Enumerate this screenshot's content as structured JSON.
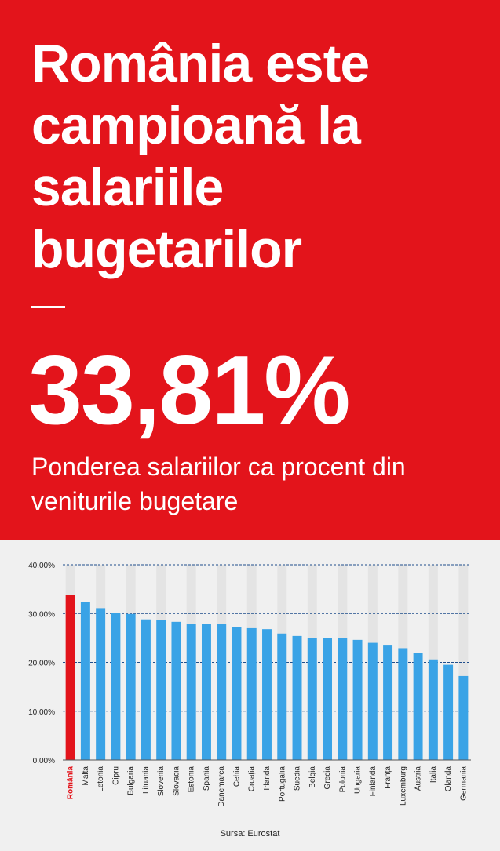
{
  "headline": "România este campioană la salariile bugetarilor",
  "big_value": "33,81%",
  "subtitle": "Ponderea salariilor ca procent din veniturile bugetare",
  "source": "Sursa: Eurostat",
  "colors": {
    "hero_background": "#e3141b",
    "highlight_bar": "#e3141b",
    "bar": "#3aa3e6",
    "stripe": "#e4e4e4",
    "gridline": "#1f4e8c"
  },
  "chart_data": {
    "type": "bar",
    "categories": [
      "România",
      "Malta",
      "Letonia",
      "Cipru",
      "Bulgaria",
      "Lituania",
      "Slovenia",
      "Slovacia",
      "Estonia",
      "Spania",
      "Danemarca",
      "Cehia",
      "Croația",
      "Irlanda",
      "Portugalia",
      "Suedia",
      "Belgia",
      "Grecia",
      "Polonia",
      "Ungaria",
      "Finlanda",
      "Franța",
      "Luxemburg",
      "Austria",
      "Italia",
      "Olanda",
      "Germania"
    ],
    "values": [
      33.81,
      32.3,
      31.1,
      30.1,
      29.9,
      28.8,
      28.6,
      28.3,
      27.9,
      27.9,
      27.9,
      27.3,
      27.0,
      26.8,
      25.9,
      25.4,
      25.0,
      25.0,
      24.9,
      24.6,
      24.0,
      23.6,
      22.9,
      21.9,
      20.6,
      19.5,
      17.2
    ],
    "highlight": "România",
    "yticks": [
      "0.00%",
      "10.00%",
      "20.00%",
      "30.00%",
      "40.00%"
    ],
    "ylim": [
      0,
      40
    ],
    "grid": true
  }
}
